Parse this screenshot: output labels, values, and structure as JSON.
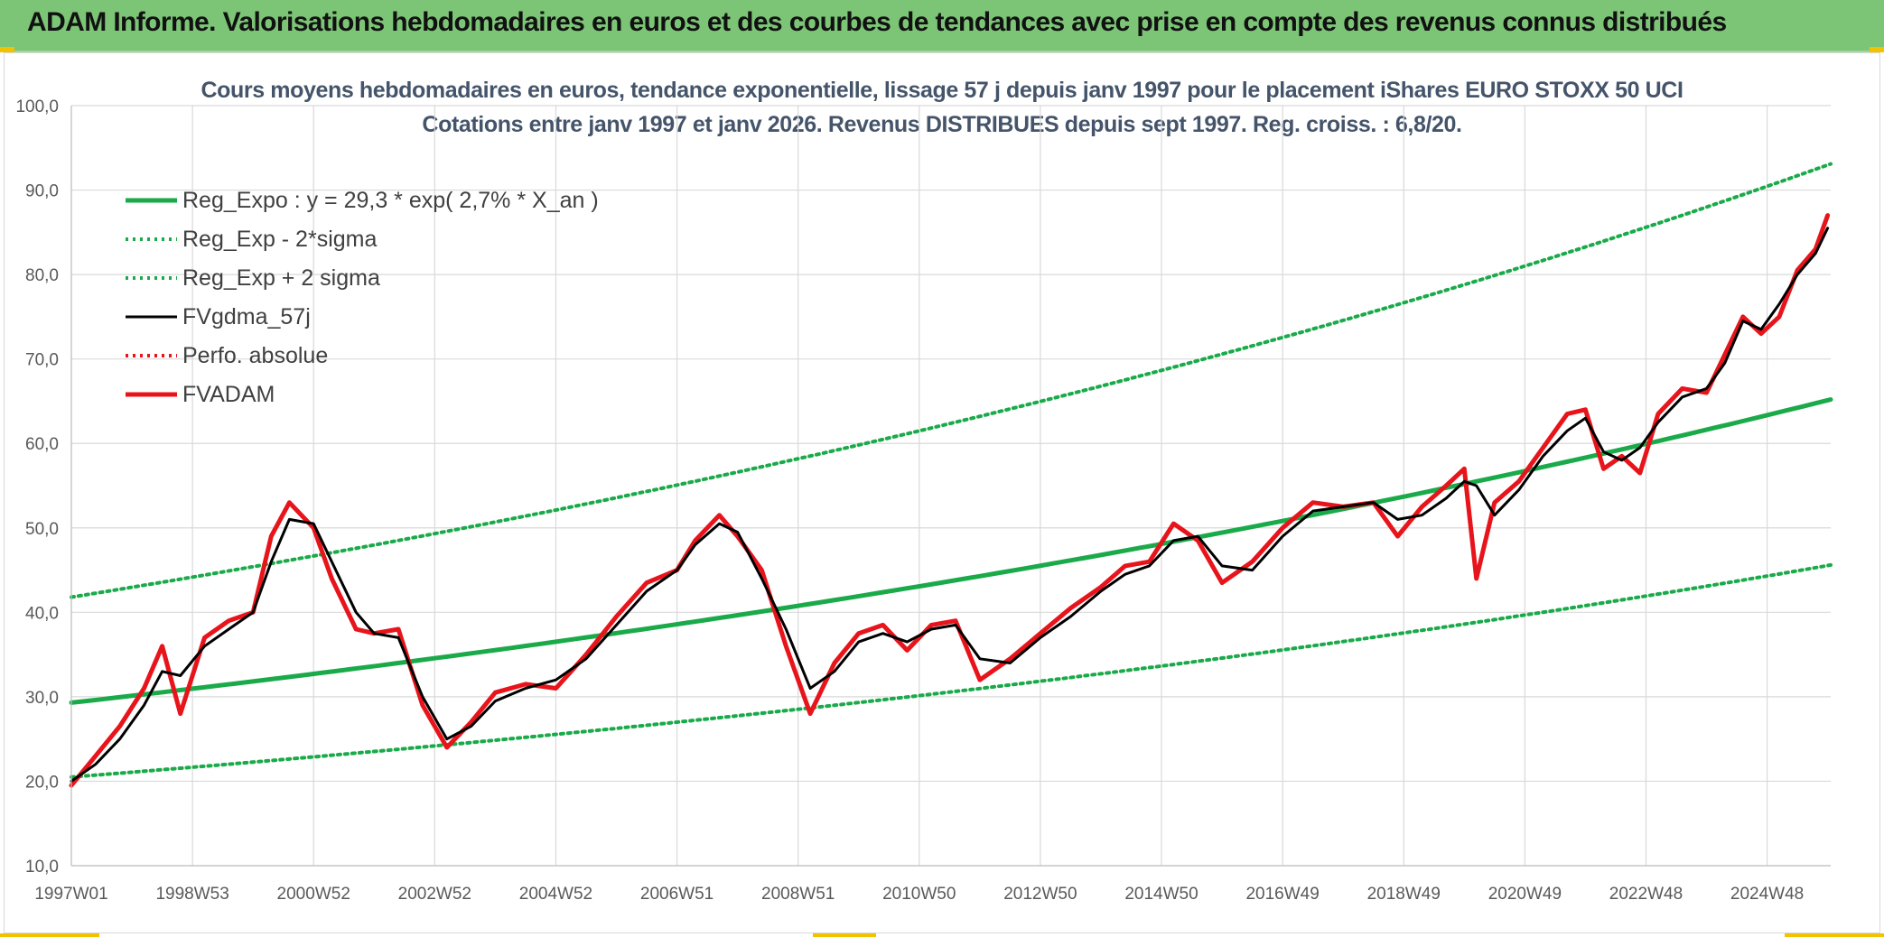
{
  "banner": {
    "title": "ADAM Informe. Valorisations hebdomadaires en euros et des courbes de tendances avec prise en compte des revenus connus distribués",
    "bg_color": "#7cc576"
  },
  "chart_data": {
    "type": "line",
    "title": "Cours moyens hebdomadaires en euros, tendance exponentielle, lissage 57 j depuis janv 1997 pour le placement iShares EURO STOXX 50 UCI",
    "subtitle": "Cotations entre janv 1997 et janv 2026. Revenus DISTRIBUES depuis sept 1997. Reg. croiss. : 6,8/20.",
    "xlabel": "",
    "ylabel": "",
    "x_range": [
      1997.0,
      2026.05
    ],
    "ylim": [
      10,
      100
    ],
    "y_ticks": [
      "10,0",
      "20,0",
      "30,0",
      "40,0",
      "50,0",
      "60,0",
      "70,0",
      "80,0",
      "90,0",
      "100,0"
    ],
    "y_tick_values": [
      10,
      20,
      30,
      40,
      50,
      60,
      70,
      80,
      90,
      100
    ],
    "x_ticks": [
      "1997W01",
      "1998W53",
      "2000W52",
      "2002W52",
      "2004W52",
      "2006W51",
      "2008W51",
      "2010W50",
      "2012W50",
      "2014W50",
      "2016W49",
      "2018W49",
      "2020W49",
      "2022W48",
      "2024W48"
    ],
    "x_tick_values": [
      1997.0,
      1999.0,
      2001.0,
      2003.0,
      2005.0,
      2007.0,
      2009.0,
      2011.0,
      2013.0,
      2015.0,
      2017.0,
      2019.0,
      2021.0,
      2023.0,
      2025.0
    ],
    "grid": true,
    "legend_position": "top-left",
    "series": [
      {
        "name": "Reg_Expo : y = 29,3 * exp( 2,7% *  X_an )",
        "color": "#1aaa4a",
        "style": "solid-thick",
        "x": [
          1997.0,
          2026.05
        ],
        "y": [
          29.3,
          65.2
        ],
        "curve": "exponential"
      },
      {
        "name": "Reg_Exp - 2*sigma",
        "color": "#1aaa4a",
        "style": "dotted",
        "x": [
          1997.0,
          2026.05
        ],
        "y": [
          20.5,
          45.6
        ],
        "curve": "exponential"
      },
      {
        "name": "Reg_Exp + 2 sigma",
        "color": "#1aaa4a",
        "style": "dotted",
        "x": [
          1997.0,
          2026.05
        ],
        "y": [
          41.8,
          93.1
        ],
        "curve": "exponential"
      },
      {
        "name": "FVgdma_57j",
        "color": "#000000",
        "style": "solid-thin",
        "x": [
          1997.0,
          1997.4,
          1997.8,
          1998.2,
          1998.5,
          1998.8,
          1999.2,
          1999.6,
          2000.0,
          2000.3,
          2000.6,
          2001.0,
          2001.3,
          2001.7,
          2002.0,
          2002.4,
          2002.8,
          2003.2,
          2003.6,
          2004.0,
          2004.5,
          2005.0,
          2005.5,
          2006.0,
          2006.5,
          2007.0,
          2007.3,
          2007.7,
          2008.0,
          2008.4,
          2008.8,
          2009.2,
          2009.6,
          2010.0,
          2010.4,
          2010.8,
          2011.2,
          2011.6,
          2012.0,
          2012.5,
          2013.0,
          2013.5,
          2014.0,
          2014.4,
          2014.8,
          2015.2,
          2015.6,
          2016.0,
          2016.5,
          2017.0,
          2017.5,
          2018.0,
          2018.5,
          2018.9,
          2019.3,
          2019.7,
          2020.0,
          2020.2,
          2020.5,
          2020.9,
          2021.3,
          2021.7,
          2022.0,
          2022.3,
          2022.6,
          2022.9,
          2023.2,
          2023.6,
          2024.0,
          2024.3,
          2024.6,
          2024.9,
          2025.2,
          2025.5,
          2025.8,
          2026.0
        ],
        "y": [
          20.0,
          22.0,
          25.0,
          29.0,
          33.0,
          32.5,
          36.0,
          38.0,
          40.0,
          46.0,
          51.0,
          50.5,
          46.0,
          40.0,
          37.5,
          37.0,
          30.0,
          25.0,
          26.5,
          29.5,
          31.0,
          32.0,
          34.5,
          38.5,
          42.5,
          45.0,
          48.0,
          50.5,
          49.5,
          44.0,
          38.0,
          31.0,
          33.0,
          36.5,
          37.5,
          36.5,
          38.0,
          38.5,
          34.5,
          34.0,
          37.0,
          39.5,
          42.5,
          44.5,
          45.5,
          48.5,
          49.0,
          45.5,
          45.0,
          49.0,
          52.0,
          52.5,
          53.0,
          51.0,
          51.5,
          53.5,
          55.5,
          55.0,
          51.5,
          54.5,
          58.5,
          61.5,
          63.0,
          59.0,
          58.0,
          59.5,
          62.5,
          65.5,
          66.5,
          69.5,
          74.5,
          73.5,
          76.5,
          80.0,
          82.5,
          85.5
        ]
      },
      {
        "name": "Perfo. absolue",
        "color": "#e8141b",
        "style": "dotted",
        "x": [],
        "y": []
      },
      {
        "name": "FVADAM",
        "color": "#e8141b",
        "style": "solid-thick",
        "x": [
          1997.0,
          1997.4,
          1997.8,
          1998.2,
          1998.5,
          1998.8,
          1999.2,
          1999.6,
          2000.0,
          2000.3,
          2000.6,
          2001.0,
          2001.3,
          2001.7,
          2002.0,
          2002.4,
          2002.8,
          2003.2,
          2003.6,
          2004.0,
          2004.5,
          2005.0,
          2005.5,
          2006.0,
          2006.5,
          2007.0,
          2007.3,
          2007.7,
          2008.0,
          2008.4,
          2008.8,
          2009.2,
          2009.6,
          2010.0,
          2010.4,
          2010.8,
          2011.2,
          2011.6,
          2012.0,
          2012.5,
          2013.0,
          2013.5,
          2014.0,
          2014.4,
          2014.8,
          2015.2,
          2015.6,
          2016.0,
          2016.5,
          2017.0,
          2017.5,
          2018.0,
          2018.5,
          2018.9,
          2019.3,
          2019.7,
          2020.0,
          2020.2,
          2020.5,
          2020.9,
          2021.3,
          2021.7,
          2022.0,
          2022.3,
          2022.6,
          2022.9,
          2023.2,
          2023.6,
          2024.0,
          2024.3,
          2024.6,
          2024.9,
          2025.2,
          2025.5,
          2025.8,
          2026.0
        ],
        "y": [
          19.5,
          23.0,
          26.5,
          31.0,
          36.0,
          28.0,
          37.0,
          39.0,
          40.0,
          49.0,
          53.0,
          50.0,
          44.0,
          38.0,
          37.5,
          38.0,
          29.0,
          24.0,
          27.0,
          30.5,
          31.5,
          31.0,
          35.0,
          39.5,
          43.5,
          45.0,
          48.5,
          51.5,
          49.0,
          45.0,
          36.0,
          28.0,
          34.0,
          37.5,
          38.5,
          35.5,
          38.5,
          39.0,
          32.0,
          34.5,
          37.5,
          40.5,
          43.0,
          45.5,
          46.0,
          50.5,
          48.5,
          43.5,
          46.0,
          50.0,
          53.0,
          52.5,
          53.0,
          49.0,
          52.5,
          55.0,
          57.0,
          44.0,
          53.0,
          55.5,
          59.5,
          63.5,
          64.0,
          57.0,
          58.5,
          56.5,
          63.5,
          66.5,
          66.0,
          70.5,
          75.0,
          73.0,
          75.0,
          80.5,
          83.0,
          87.0
        ]
      }
    ]
  }
}
